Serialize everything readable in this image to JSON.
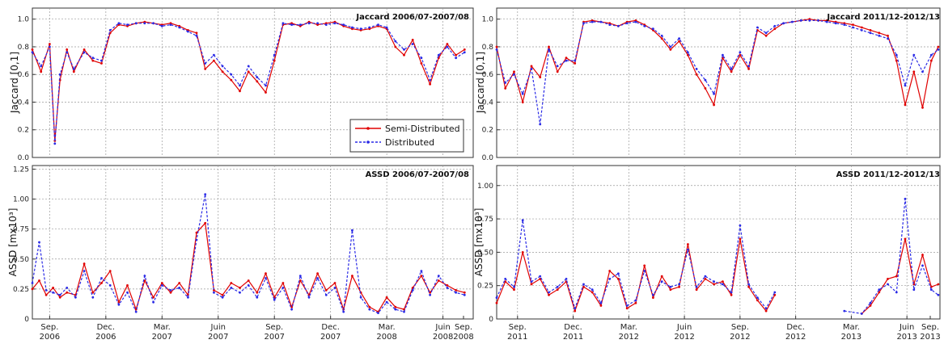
{
  "colors": {
    "semi": "#e00000",
    "dist": "#2a2ae6",
    "grid": "#9a9a9a"
  },
  "legend": {
    "semi": "Semi-Distributed",
    "dist": "Distributed",
    "placement": "lower-right"
  },
  "chart_data": [
    {
      "type": "line",
      "id": "jl",
      "title": "Jaccard 2006/07-2007/08",
      "ylabel": "Jaccard [0,1]",
      "ylim": [
        0,
        1.08
      ],
      "yticks": [
        "0.0",
        "0.2",
        "0.4",
        "0.6",
        "0.8",
        "1.0"
      ],
      "ytick_values": [
        0,
        0.2,
        0.4,
        0.6,
        0.8,
        1.0
      ],
      "xlim": [
        0,
        25.5
      ],
      "grid": true,
      "xticks_visible": false,
      "series": [
        {
          "name": "Semi-Distributed",
          "x": [
            0,
            0.5,
            1,
            1.3,
            1.6,
            2,
            2.4,
            3,
            3.5,
            4,
            4.5,
            5,
            5.5,
            6,
            6.5,
            7,
            7.5,
            8,
            8.5,
            9,
            9.5,
            10,
            10.5,
            11,
            11.5,
            12,
            12.5,
            13,
            13.5,
            14,
            14.5,
            15,
            15.5,
            16,
            16.5,
            17,
            17.5,
            18,
            18.5,
            19,
            19.5,
            20,
            20.5,
            21,
            21.5,
            22,
            22.5,
            23,
            23.5,
            24,
            24.5,
            25
          ],
          "y": [
            0.78,
            0.62,
            0.82,
            0.12,
            0.56,
            0.78,
            0.62,
            0.78,
            0.7,
            0.68,
            0.9,
            0.96,
            0.95,
            0.97,
            0.98,
            0.97,
            0.96,
            0.97,
            0.95,
            0.92,
            0.9,
            0.64,
            0.7,
            0.62,
            0.56,
            0.48,
            0.62,
            0.55,
            0.47,
            0.7,
            0.96,
            0.97,
            0.95,
            0.98,
            0.96,
            0.97,
            0.98,
            0.95,
            0.93,
            0.92,
            0.93,
            0.95,
            0.93,
            0.8,
            0.74,
            0.85,
            0.68,
            0.53,
            0.72,
            0.82,
            0.74,
            0.78
          ]
        },
        {
          "name": "Distributed",
          "x": [
            0,
            0.5,
            1,
            1.3,
            1.6,
            2,
            2.4,
            3,
            3.5,
            4,
            4.5,
            5,
            5.5,
            6,
            6.5,
            7,
            7.5,
            8,
            8.5,
            9,
            9.5,
            10,
            10.5,
            11,
            11.5,
            12,
            12.5,
            13,
            13.5,
            14,
            14.5,
            15,
            15.5,
            16,
            16.5,
            17,
            17.5,
            18,
            18.5,
            19,
            19.5,
            20,
            20.5,
            21,
            21.5,
            22,
            22.5,
            23,
            23.5,
            24,
            24.5,
            25
          ],
          "y": [
            0.76,
            0.66,
            0.8,
            0.1,
            0.6,
            0.76,
            0.64,
            0.76,
            0.72,
            0.7,
            0.92,
            0.97,
            0.96,
            0.97,
            0.97,
            0.97,
            0.95,
            0.96,
            0.94,
            0.91,
            0.88,
            0.68,
            0.74,
            0.66,
            0.6,
            0.52,
            0.66,
            0.58,
            0.52,
            0.74,
            0.97,
            0.96,
            0.96,
            0.97,
            0.97,
            0.96,
            0.97,
            0.96,
            0.94,
            0.93,
            0.94,
            0.96,
            0.94,
            0.84,
            0.78,
            0.82,
            0.72,
            0.56,
            0.74,
            0.8,
            0.72,
            0.76
          ]
        }
      ]
    },
    {
      "type": "line",
      "id": "jr",
      "title": "Jaccard 2011/12-2012/13",
      "ylabel": "Jaccard [0,1]",
      "ylim": [
        0,
        1.08
      ],
      "yticks": [
        "0.0",
        "0.2",
        "0.4",
        "0.6",
        "0.8",
        "1.0"
      ],
      "ytick_values": [
        0,
        0.2,
        0.4,
        0.6,
        0.8,
        1.0
      ],
      "xlim": [
        0,
        25.5
      ],
      "grid": true,
      "xticks_visible": false,
      "series": [
        {
          "name": "Semi-Distributed",
          "x": [
            0,
            0.5,
            1,
            1.5,
            2,
            2.5,
            3,
            3.5,
            4,
            4.5,
            5,
            5.5,
            6,
            6.5,
            7,
            7.5,
            8,
            8.5,
            9,
            9.5,
            10,
            10.5,
            11,
            11.5,
            12,
            12.5,
            13,
            13.5,
            14,
            14.5,
            15,
            15.5,
            16,
            16.5,
            17,
            17.5,
            18,
            18.5,
            19,
            19.5,
            20,
            20.5,
            21,
            21.5,
            22,
            22.5,
            23,
            23.5,
            24,
            24.5,
            25,
            25.4
          ],
          "y": [
            0.8,
            0.5,
            0.62,
            0.4,
            0.66,
            0.58,
            0.8,
            0.62,
            0.72,
            0.68,
            0.98,
            0.99,
            0.98,
            0.97,
            0.95,
            0.98,
            0.99,
            0.96,
            0.92,
            0.86,
            0.78,
            0.84,
            0.74,
            0.6,
            0.5,
            0.38,
            0.72,
            0.62,
            0.74,
            0.64,
            0.92,
            0.88,
            0.93,
            0.97,
            0.98,
            0.99,
            1.0,
            0.99,
            0.99,
            0.98,
            0.97,
            0.96,
            0.94,
            0.92,
            0.9,
            0.88,
            0.7,
            0.38,
            0.62,
            0.36,
            0.7,
            0.8
          ]
        },
        {
          "name": "Distributed",
          "x": [
            0,
            0.5,
            1,
            1.5,
            2,
            2.5,
            3,
            3.5,
            4,
            4.5,
            5,
            5.5,
            6,
            6.5,
            7,
            7.5,
            8,
            8.5,
            9,
            9.5,
            10,
            10.5,
            11,
            11.5,
            12,
            12.5,
            13,
            13.5,
            14,
            14.5,
            15,
            15.5,
            16,
            16.5,
            17,
            17.5,
            18,
            18.5,
            19,
            19.5,
            20,
            20.5,
            21,
            21.5,
            22,
            22.5,
            23,
            23.5,
            24,
            24.5,
            25,
            25.4
          ],
          "y": [
            0.78,
            0.54,
            0.6,
            0.46,
            0.64,
            0.24,
            0.78,
            0.66,
            0.7,
            0.7,
            0.97,
            0.98,
            0.98,
            0.96,
            0.95,
            0.97,
            0.98,
            0.95,
            0.93,
            0.88,
            0.8,
            0.86,
            0.76,
            0.64,
            0.56,
            0.46,
            0.74,
            0.64,
            0.76,
            0.66,
            0.94,
            0.9,
            0.95,
            0.97,
            0.98,
            0.99,
            0.99,
            0.99,
            0.98,
            0.97,
            0.96,
            0.94,
            0.92,
            0.9,
            0.88,
            0.86,
            0.74,
            0.52,
            0.74,
            0.62,
            0.74,
            0.78
          ]
        }
      ]
    },
    {
      "type": "line",
      "id": "al",
      "title": "ASSD 2006/07-2007/08",
      "ylabel": "ASSD [mx10³]",
      "ylim": [
        0,
        1.28
      ],
      "yticks": [
        "0",
        "0.25",
        "0.50",
        "0.75",
        "1.00",
        "1.25"
      ],
      "ytick_values": [
        0,
        0.25,
        0.5,
        0.75,
        1.0,
        1.25
      ],
      "xlim": [
        0,
        25.5
      ],
      "grid": true,
      "xticks_visible": true,
      "xticks": [
        {
          "pos": 1.0,
          "line1": "Sep.",
          "line2": "2006"
        },
        {
          "pos": 4.25,
          "line1": "Dec.",
          "line2": "2006"
        },
        {
          "pos": 7.5,
          "line1": "Mar.",
          "line2": "2007"
        },
        {
          "pos": 10.75,
          "line1": "Juin",
          "line2": "2007"
        },
        {
          "pos": 14.0,
          "line1": "Sep.",
          "line2": "2007"
        },
        {
          "pos": 17.25,
          "line1": "Dec.",
          "line2": "2007"
        },
        {
          "pos": 20.5,
          "line1": "Mar.",
          "line2": "2008"
        },
        {
          "pos": 23.75,
          "line1": "Juin",
          "line2": "2008"
        },
        {
          "pos": 27.0,
          "line1": "Sep.",
          "line2": "2008"
        }
      ],
      "series": [
        {
          "name": "Semi-Distributed",
          "x": [
            0,
            0.4,
            0.8,
            1.2,
            1.6,
            2,
            2.5,
            3,
            3.5,
            4,
            4.5,
            5,
            5.5,
            6,
            6.5,
            7,
            7.5,
            8,
            8.5,
            9,
            9.5,
            10,
            10.5,
            11,
            11.5,
            12,
            12.5,
            13,
            13.5,
            14,
            14.5,
            15,
            15.5,
            16,
            16.5,
            17,
            17.5,
            18,
            18.5,
            19,
            19.5,
            20,
            20.5,
            21,
            21.5,
            22,
            22.5,
            23,
            23.5,
            24,
            24.5,
            25
          ],
          "y": [
            0.25,
            0.32,
            0.2,
            0.26,
            0.18,
            0.22,
            0.2,
            0.46,
            0.22,
            0.3,
            0.4,
            0.14,
            0.28,
            0.08,
            0.32,
            0.18,
            0.3,
            0.22,
            0.3,
            0.2,
            0.72,
            0.8,
            0.24,
            0.2,
            0.3,
            0.26,
            0.32,
            0.22,
            0.38,
            0.18,
            0.3,
            0.1,
            0.32,
            0.2,
            0.38,
            0.24,
            0.3,
            0.08,
            0.36,
            0.22,
            0.1,
            0.06,
            0.18,
            0.1,
            0.08,
            0.26,
            0.36,
            0.22,
            0.32,
            0.28,
            0.24,
            0.22
          ]
        },
        {
          "name": "Distributed",
          "x": [
            0,
            0.4,
            0.8,
            1.2,
            1.6,
            2,
            2.5,
            3,
            3.5,
            4,
            4.5,
            5,
            5.5,
            6,
            6.5,
            7,
            7.5,
            8,
            8.5,
            9,
            9.5,
            10,
            10.5,
            11,
            11.5,
            12,
            12.5,
            13,
            13.5,
            14,
            14.5,
            15,
            15.5,
            16,
            16.5,
            17,
            17.5,
            18,
            18.5,
            19,
            19.5,
            20,
            20.5,
            21,
            21.5,
            22,
            22.5,
            23,
            23.5,
            24,
            24.5,
            25
          ],
          "y": [
            0.3,
            0.64,
            0.24,
            0.22,
            0.2,
            0.26,
            0.18,
            0.4,
            0.18,
            0.34,
            0.28,
            0.12,
            0.22,
            0.06,
            0.36,
            0.14,
            0.28,
            0.24,
            0.26,
            0.18,
            0.66,
            1.04,
            0.22,
            0.18,
            0.26,
            0.22,
            0.28,
            0.18,
            0.34,
            0.16,
            0.26,
            0.08,
            0.36,
            0.18,
            0.34,
            0.2,
            0.26,
            0.06,
            0.74,
            0.18,
            0.08,
            0.05,
            0.14,
            0.08,
            0.06,
            0.24,
            0.4,
            0.2,
            0.36,
            0.26,
            0.22,
            0.2
          ]
        }
      ]
    },
    {
      "type": "line",
      "id": "ar",
      "title": "ASSD 2011/12-2012/13",
      "ylabel": "ASSD [mx10³]",
      "ylim": [
        0,
        1.15
      ],
      "yticks": [
        "0",
        "0.25",
        "0.50",
        "0.75",
        "1.00"
      ],
      "ytick_values": [
        0,
        0.25,
        0.5,
        0.75,
        1.0
      ],
      "xlim": [
        0,
        25.5
      ],
      "grid": true,
      "xticks_visible": true,
      "xticks": [
        {
          "pos": 1.2,
          "line1": "Sep.",
          "line2": "2011"
        },
        {
          "pos": 4.4,
          "line1": "Dec.",
          "line2": "2011"
        },
        {
          "pos": 7.6,
          "line1": "Mar.",
          "line2": "2012"
        },
        {
          "pos": 10.8,
          "line1": "Juin",
          "line2": "2012"
        },
        {
          "pos": 14.0,
          "line1": "Sep.",
          "line2": "2012"
        },
        {
          "pos": 17.2,
          "line1": "Dec.",
          "line2": "2012"
        },
        {
          "pos": 20.4,
          "line1": "Mar.",
          "line2": "2013"
        },
        {
          "pos": 23.6,
          "line1": "Juin",
          "line2": "2013"
        },
        {
          "pos": 26.8,
          "line1": "Sep.",
          "line2": "2013"
        }
      ],
      "series": [
        {
          "name": "Semi-Distributed",
          "x": [
            0,
            0.5,
            1,
            1.5,
            2,
            2.5,
            3,
            3.5,
            4,
            4.5,
            5,
            5.5,
            6,
            6.5,
            7,
            7.5,
            8,
            8.5,
            9,
            9.5,
            10,
            10.5,
            11,
            11.5,
            12,
            12.5,
            13,
            13.5,
            14,
            14.5,
            15,
            15.5,
            16,
            16.5,
            17,
            17.5,
            18,
            19,
            20,
            21,
            21.5,
            22,
            22.5,
            23,
            23.5,
            24,
            24.5,
            25,
            25.4
          ],
          "y": [
            0.12,
            0.28,
            0.22,
            0.5,
            0.26,
            0.3,
            0.18,
            0.22,
            0.28,
            0.06,
            0.24,
            0.2,
            0.1,
            0.36,
            0.3,
            0.08,
            0.12,
            0.4,
            0.16,
            0.32,
            0.22,
            0.24,
            0.56,
            0.22,
            0.3,
            0.26,
            0.28,
            0.18,
            0.6,
            0.24,
            0.14,
            0.06,
            0.18,
            null,
            null,
            null,
            null,
            null,
            null,
            0.04,
            0.1,
            0.2,
            0.3,
            0.32,
            0.6,
            0.26,
            0.48,
            0.24,
            0.26
          ]
        },
        {
          "name": "Distributed",
          "x": [
            0,
            0.5,
            1,
            1.5,
            2,
            2.5,
            3,
            3.5,
            4,
            4.5,
            5,
            5.5,
            6,
            6.5,
            7,
            7.5,
            8,
            8.5,
            9,
            9.5,
            10,
            10.5,
            11,
            11.5,
            12,
            12.5,
            13,
            13.5,
            14,
            14.5,
            15,
            15.5,
            16,
            16.5,
            17,
            17.5,
            18,
            19,
            20,
            21,
            21.5,
            22,
            22.5,
            23,
            23.5,
            24,
            24.5,
            25,
            25.4
          ],
          "y": [
            0.16,
            0.3,
            0.24,
            0.74,
            0.28,
            0.32,
            0.2,
            0.24,
            0.3,
            0.08,
            0.26,
            0.22,
            0.12,
            0.3,
            0.34,
            0.1,
            0.14,
            0.36,
            0.18,
            0.28,
            0.24,
            0.26,
            0.52,
            0.24,
            0.32,
            0.28,
            0.26,
            0.2,
            0.7,
            0.26,
            0.16,
            0.08,
            0.2,
            null,
            null,
            null,
            null,
            null,
            0.06,
            0.04,
            0.12,
            0.22,
            0.26,
            0.2,
            0.9,
            0.22,
            0.4,
            0.22,
            0.18
          ]
        }
      ]
    }
  ]
}
